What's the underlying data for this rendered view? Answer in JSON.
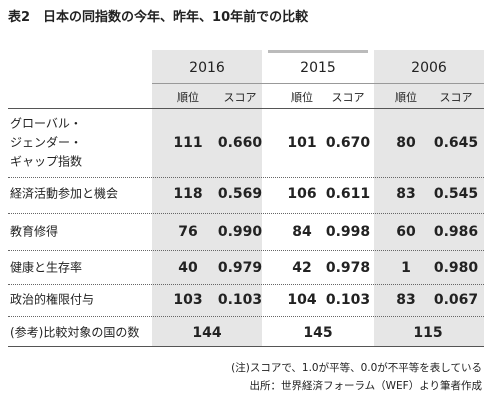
{
  "header": {
    "title": "表2　日本の同指数の今年、昨年、10年前での比較"
  },
  "table": {
    "years": [
      "2016",
      "2015",
      "2006"
    ],
    "subheaders": [
      "順位",
      "スコア",
      "順位",
      "スコア",
      "順位",
      "スコア"
    ],
    "rows": [
      {
        "label": "グローバル・\nジェンダー・\nギャップ指数",
        "cells": [
          "111",
          "0.660",
          "101",
          "0.670",
          "80",
          "0.645"
        ]
      },
      {
        "label": "経済活動参加と機会",
        "cells": [
          "118",
          "0.569",
          "106",
          "0.611",
          "83",
          "0.545"
        ]
      },
      {
        "label": "教育修得",
        "cells": [
          "76",
          "0.990",
          "84",
          "0.998",
          "60",
          "0.986"
        ]
      },
      {
        "label": "健康と生存率",
        "cells": [
          "40",
          "0.979",
          "42",
          "0.978",
          "1",
          "0.980"
        ]
      },
      {
        "label": "政治的権限付与",
        "cells": [
          "103",
          "0.103",
          "104",
          "0.103",
          "83",
          "0.067"
        ]
      }
    ],
    "count_row": {
      "label": "(参考)比較対象の国の数",
      "cells": [
        "144",
        "145",
        "115"
      ]
    }
  },
  "notes": [
    "(注)スコアで、1.0が平等、0.0が不平等を表している",
    "出所：世界経済フォーラム（WEF）より筆者作成"
  ]
}
